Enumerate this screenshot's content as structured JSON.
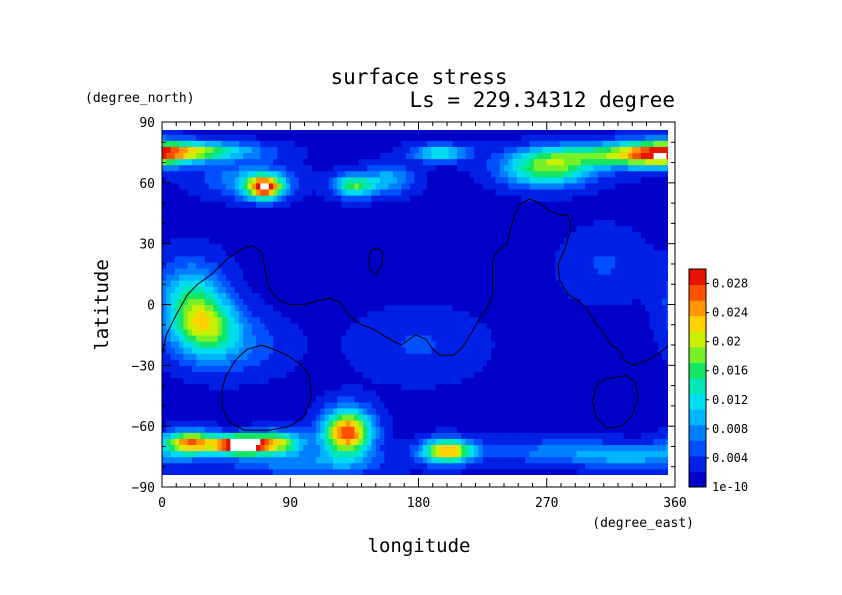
{
  "chart_data": {
    "type": "heatmap",
    "title": "surface stress",
    "subtitle": "Ls = 229.34312 degree",
    "xlabel": "longitude",
    "ylabel": "latitude",
    "x_unit": "(degree_east)",
    "y_unit": "(degree_north)",
    "xlim": [
      0,
      360
    ],
    "ylim": [
      -90,
      90
    ],
    "x_ticks": [
      "0",
      "90",
      "180",
      "270",
      "360"
    ],
    "y_ticks": [
      "90",
      "60",
      "30",
      "0",
      "−30",
      "−60",
      "−90"
    ],
    "x_tick_values": [
      0,
      90,
      180,
      270,
      360
    ],
    "y_tick_values": [
      90,
      60,
      30,
      0,
      -30,
      -60,
      -90
    ],
    "colorbar": {
      "min_label": "1e-10",
      "labels": [
        "0.004",
        "0.008",
        "0.012",
        "0.016",
        "0.02",
        "0.024",
        "0.028"
      ],
      "label_values": [
        0.004,
        0.008,
        0.012,
        0.016,
        0.02,
        0.024,
        0.028
      ],
      "range": [
        0,
        0.03
      ],
      "colors": [
        "#0000c8",
        "#0020e6",
        "#0050ff",
        "#0080ff",
        "#00b4ff",
        "#00dcf0",
        "#00e6b4",
        "#14e664",
        "#78f028",
        "#c8f000",
        "#ffd200",
        "#ff9600",
        "#ff5000",
        "#e61400",
        "#ffffff"
      ]
    },
    "field": {
      "background": 0.0015,
      "features": [
        {
          "lon": 0,
          "lat": 75,
          "slon": 25,
          "slat": 4,
          "value": 0.013
        },
        {
          "lon": 30,
          "lat": 76,
          "slon": 30,
          "slat": 3,
          "value": 0.011
        },
        {
          "lon": 195,
          "lat": 75,
          "slon": 14,
          "slat": 3,
          "value": 0.011
        },
        {
          "lon": 270,
          "lat": 67,
          "slon": 22,
          "slat": 6,
          "value": 0.016
        },
        {
          "lon": 305,
          "lat": 74,
          "slon": 30,
          "slat": 4,
          "value": 0.012
        },
        {
          "lon": 345,
          "lat": 74,
          "slon": 20,
          "slat": 5,
          "value": 0.011
        },
        {
          "lon": 72,
          "lat": 58,
          "slon": 9,
          "slat": 4,
          "value": 0.026
        },
        {
          "lon": 60,
          "lat": 62,
          "slon": 22,
          "slat": 6,
          "value": 0.007
        },
        {
          "lon": 135,
          "lat": 59,
          "slon": 10,
          "slat": 4,
          "value": 0.015
        },
        {
          "lon": 160,
          "lat": 62,
          "slon": 12,
          "slat": 5,
          "value": 0.008
        },
        {
          "lon": 30,
          "lat": -10,
          "slon": 16,
          "slat": 10,
          "value": 0.015
        },
        {
          "lon": 20,
          "lat": 5,
          "slon": 16,
          "slat": 12,
          "value": 0.01
        },
        {
          "lon": 50,
          "lat": -20,
          "slon": 25,
          "slat": 10,
          "value": 0.005
        },
        {
          "lon": 20,
          "lat": -68,
          "slon": 14,
          "slat": 4,
          "value": 0.024
        },
        {
          "lon": 55,
          "lat": -69,
          "slon": 12,
          "slat": 3,
          "value": 0.034
        },
        {
          "lon": 80,
          "lat": -68,
          "slon": 14,
          "slat": 4,
          "value": 0.018
        },
        {
          "lon": 130,
          "lat": -63,
          "slon": 12,
          "slat": 8,
          "value": 0.026
        },
        {
          "lon": 200,
          "lat": -72,
          "slon": 12,
          "slat": 4,
          "value": 0.022
        },
        {
          "lon": 270,
          "lat": -72,
          "slon": 45,
          "slat": 4,
          "value": 0.005
        },
        {
          "lon": 330,
          "lat": -75,
          "slon": 30,
          "slat": 4,
          "value": 0.007
        },
        {
          "lon": 100,
          "lat": -78,
          "slon": 40,
          "slat": 4,
          "value": 0.006
        },
        {
          "lon": 310,
          "lat": 20,
          "slon": 20,
          "slat": 12,
          "value": 0.003
        },
        {
          "lon": 180,
          "lat": -20,
          "slon": 30,
          "slat": 12,
          "value": 0.003
        }
      ]
    },
    "contours": [
      [
        [
          0,
          -25
        ],
        [
          3,
          -15
        ],
        [
          10,
          -5
        ],
        [
          18,
          5
        ],
        [
          25,
          10
        ],
        [
          35,
          15
        ],
        [
          45,
          22
        ],
        [
          55,
          27
        ],
        [
          63,
          29
        ],
        [
          70,
          26
        ],
        [
          73,
          15
        ],
        [
          75,
          8
        ],
        [
          82,
          2
        ],
        [
          90,
          0
        ],
        [
          100,
          0
        ],
        [
          110,
          2
        ],
        [
          118,
          3
        ],
        [
          125,
          1
        ],
        [
          132,
          -6
        ],
        [
          140,
          -10
        ],
        [
          148,
          -12
        ],
        [
          155,
          -15
        ],
        [
          162,
          -18
        ],
        [
          168,
          -20
        ],
        [
          172,
          -18
        ],
        [
          178,
          -15
        ],
        [
          185,
          -17
        ],
        [
          190,
          -22
        ],
        [
          195,
          -25
        ],
        [
          205,
          -25
        ],
        [
          212,
          -20
        ],
        [
          218,
          -13
        ],
        [
          222,
          -8
        ],
        [
          228,
          -2
        ],
        [
          232,
          5
        ],
        [
          232,
          15
        ],
        [
          232,
          22
        ],
        [
          235,
          26
        ],
        [
          242,
          30
        ],
        [
          245,
          38
        ],
        [
          248,
          45
        ],
        [
          252,
          50
        ],
        [
          258,
          52
        ],
        [
          265,
          50
        ],
        [
          272,
          46
        ],
        [
          280,
          44
        ],
        [
          285,
          44
        ],
        [
          287,
          38
        ],
        [
          283,
          28
        ],
        [
          278,
          20
        ],
        [
          279,
          12
        ],
        [
          285,
          5
        ],
        [
          292,
          2
        ],
        [
          298,
          -2
        ],
        [
          305,
          -10
        ],
        [
          310,
          -14
        ],
        [
          315,
          -20
        ],
        [
          320,
          -22
        ],
        [
          325,
          -28
        ],
        [
          332,
          -30
        ],
        [
          345,
          -26
        ],
        [
          360,
          -18
        ]
      ],
      [
        [
          145,
          22
        ],
        [
          147,
          27
        ],
        [
          152,
          28
        ],
        [
          155,
          25
        ],
        [
          154,
          19
        ],
        [
          150,
          15
        ],
        [
          146,
          17
        ],
        [
          145,
          22
        ]
      ],
      [
        [
          45,
          -35
        ],
        [
          42,
          -42
        ],
        [
          42,
          -50
        ],
        [
          47,
          -58
        ],
        [
          58,
          -62
        ],
        [
          75,
          -62
        ],
        [
          90,
          -60
        ],
        [
          100,
          -55
        ],
        [
          105,
          -45
        ],
        [
          103,
          -35
        ],
        [
          98,
          -30
        ],
        [
          88,
          -25
        ],
        [
          78,
          -22
        ],
        [
          70,
          -20
        ],
        [
          60,
          -22
        ],
        [
          52,
          -27
        ],
        [
          45,
          -35
        ]
      ],
      [
        [
          305,
          -40
        ],
        [
          302,
          -48
        ],
        [
          305,
          -56
        ],
        [
          312,
          -61
        ],
        [
          322,
          -60
        ],
        [
          330,
          -55
        ],
        [
          334,
          -45
        ],
        [
          332,
          -38
        ],
        [
          326,
          -35
        ],
        [
          318,
          -36
        ],
        [
          310,
          -37
        ],
        [
          305,
          -40
        ]
      ]
    ]
  }
}
